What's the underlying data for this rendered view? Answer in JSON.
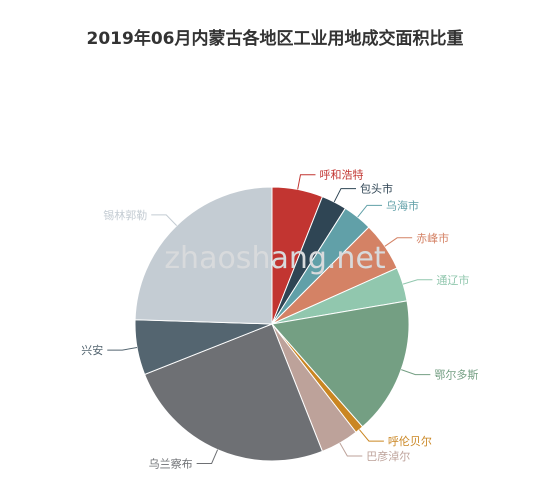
{
  "title": "2019年06月内蒙古各地区工业用地成交面积比重",
  "watermark": "zhaoshang.net",
  "chart_data": {
    "type": "pie",
    "title": "2019年06月内蒙古各地区工业用地成交面积比重",
    "slices": [
      {
        "name": "呼和浩特",
        "value": 6.0,
        "color": "#c23531"
      },
      {
        "name": "包头市",
        "value": 3.0,
        "color": "#2f4554"
      },
      {
        "name": "乌海市",
        "value": 3.5,
        "color": "#61a0a8"
      },
      {
        "name": "赤峰市",
        "value": 5.8,
        "color": "#d48265"
      },
      {
        "name": "通辽市",
        "value": 4.0,
        "color": "#91c7ae"
      },
      {
        "name": "鄂尔多斯",
        "value": 16.2,
        "color": "#749f83"
      },
      {
        "name": "呼伦贝尔",
        "value": 1.0,
        "color": "#ca8622"
      },
      {
        "name": "巴彦淖尔",
        "value": 4.5,
        "color": "#bda29a"
      },
      {
        "name": "乌兰察布",
        "value": 25.0,
        "color": "#6e7074"
      },
      {
        "name": "兴安",
        "value": 6.5,
        "color": "#546570"
      },
      {
        "name": "锡林郭勒",
        "value": 24.5,
        "color": "#c4ccd3"
      }
    ]
  }
}
